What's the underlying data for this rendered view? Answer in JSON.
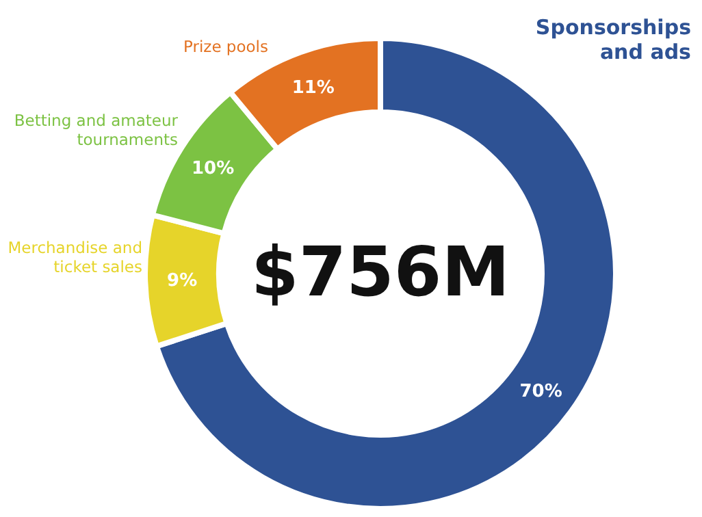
{
  "chart_data": {
    "type": "donut",
    "categories": [
      "Sponsorships and ads",
      "Merchandise and ticket sales",
      "Betting and amateur tournaments",
      "Prize pools"
    ],
    "values": [
      70,
      9,
      10,
      11
    ],
    "colors": [
      "#2e5294",
      "#e6d42a",
      "#7cc243",
      "#e37222"
    ],
    "value_labels": [
      "70%",
      "9%",
      "10%",
      "11%"
    ],
    "annotations": [
      "$756M"
    ]
  }
}
